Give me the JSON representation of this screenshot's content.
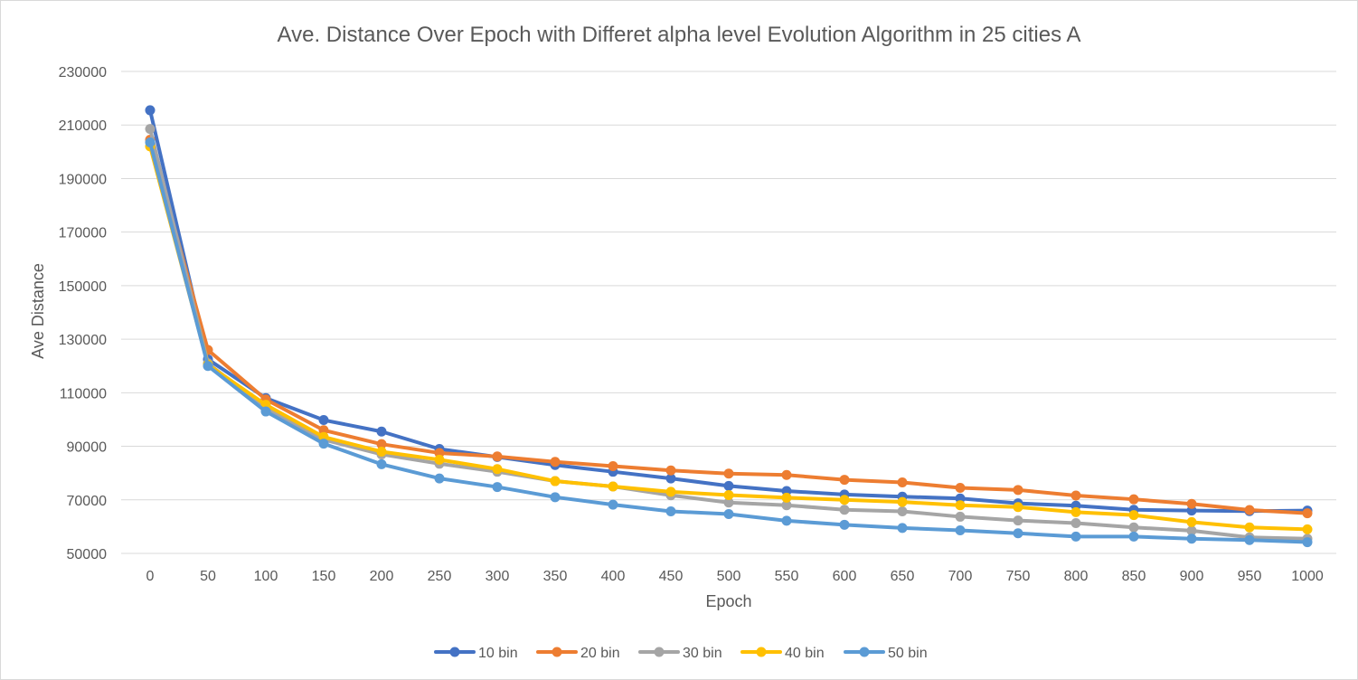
{
  "chart_data": {
    "type": "line",
    "title": "Ave. Distance Over Epoch with Differet alpha level Evolution Algorithm in 25 cities A",
    "xlabel": "Epoch",
    "ylabel": "Ave Distance",
    "categories": [
      "0",
      "50",
      "100",
      "150",
      "200",
      "250",
      "300",
      "350",
      "400",
      "450",
      "500",
      "550",
      "600",
      "650",
      "700",
      "750",
      "800",
      "850",
      "900",
      "950",
      "1000"
    ],
    "yticks": [
      "50000",
      "70000",
      "90000",
      "110000",
      "130000",
      "150000",
      "170000",
      "190000",
      "210000",
      "230000"
    ],
    "ylim": [
      50000,
      230000
    ],
    "grid": true,
    "legend_position": "bottom",
    "series": [
      {
        "name": "10 bin",
        "color": "#4472C4",
        "values": [
          215500,
          122500,
          108000,
          99800,
          95500,
          89000,
          86000,
          83000,
          80500,
          78000,
          75200,
          73300,
          72000,
          71200,
          70500,
          68700,
          67800,
          66300,
          66000,
          65800,
          66000
        ]
      },
      {
        "name": "20 bin",
        "color": "#ED7D31",
        "values": [
          204500,
          126000,
          107500,
          96000,
          90800,
          87500,
          86200,
          84200,
          82600,
          81000,
          79800,
          79300,
          77500,
          76500,
          74500,
          73700,
          71600,
          70200,
          68500,
          66200,
          65000
        ]
      },
      {
        "name": "30 bin",
        "color": "#A5A5A5",
        "values": [
          208500,
          121000,
          104000,
          92500,
          87000,
          83500,
          80500,
          77000,
          75000,
          71700,
          69000,
          68000,
          66300,
          65700,
          63700,
          62300,
          61300,
          59700,
          58500,
          56000,
          55500
        ]
      },
      {
        "name": "40 bin",
        "color": "#FFC000",
        "values": [
          202000,
          120500,
          105500,
          93500,
          88000,
          85000,
          81500,
          77000,
          75000,
          73000,
          71800,
          70800,
          70000,
          69200,
          68000,
          67300,
          65400,
          64300,
          61700,
          59700,
          59000
        ]
      },
      {
        "name": "50 bin",
        "color": "#5B9BD5",
        "values": [
          203500,
          120000,
          103000,
          91000,
          83300,
          78000,
          74800,
          71000,
          68200,
          65700,
          64700,
          62200,
          60700,
          59500,
          58600,
          57500,
          56300,
          56300,
          55500,
          55000,
          54200
        ]
      }
    ]
  }
}
